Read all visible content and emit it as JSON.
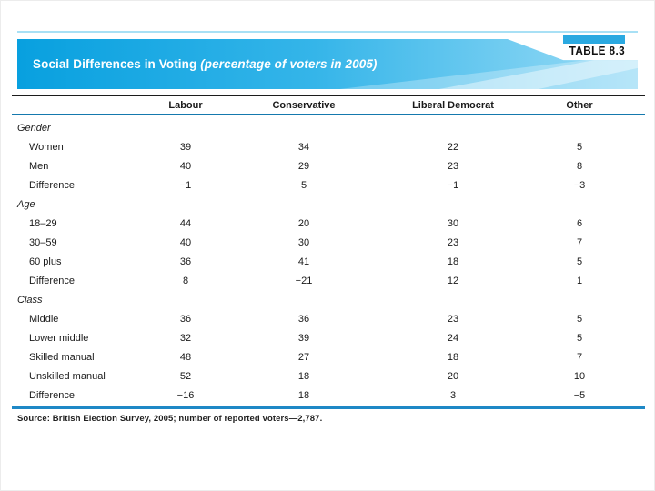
{
  "banner": {
    "title": "Social Differences in Voting",
    "subtitle": "(percentage of voters in 2005)",
    "tag": "TABLE 8.3"
  },
  "table": {
    "columns": [
      "Labour",
      "Conservative",
      "Liberal Democrat",
      "Other"
    ],
    "sections": [
      {
        "label": "Gender",
        "rows": [
          {
            "label": "Women",
            "values": [
              "39",
              "34",
              "22",
              "5"
            ]
          },
          {
            "label": "Men",
            "values": [
              "40",
              "29",
              "23",
              "8"
            ]
          },
          {
            "label": "Difference",
            "values": [
              "−1",
              "5",
              "−1",
              "−3"
            ]
          }
        ]
      },
      {
        "label": "Age",
        "rows": [
          {
            "label": "18–29",
            "values": [
              "44",
              "20",
              "30",
              "6"
            ]
          },
          {
            "label": "30–59",
            "values": [
              "40",
              "30",
              "23",
              "7"
            ]
          },
          {
            "label": "60 plus",
            "values": [
              "36",
              "41",
              "18",
              "5"
            ]
          },
          {
            "label": "Difference",
            "values": [
              "8",
              "−21",
              "12",
              "1"
            ]
          }
        ]
      },
      {
        "label": "Class",
        "rows": [
          {
            "label": "Middle",
            "values": [
              "36",
              "36",
              "23",
              "5"
            ]
          },
          {
            "label": "Lower middle",
            "values": [
              "32",
              "39",
              "24",
              "5"
            ]
          },
          {
            "label": "Skilled manual",
            "values": [
              "48",
              "27",
              "18",
              "7"
            ]
          },
          {
            "label": "Unskilled manual",
            "values": [
              "52",
              "18",
              "20",
              "10"
            ]
          },
          {
            "label": "Difference",
            "values": [
              "−16",
              "18",
              "3",
              "−5"
            ]
          }
        ]
      }
    ]
  },
  "source": "Source: British Election Survey, 2005; number of reported voters—2,787.",
  "colors": {
    "banner_blue_left": "#08a0df",
    "banner_blue_right": "#9bdcf6",
    "tag_blue": "#2aa9e1",
    "header_rule_blue": "#1579ae",
    "bottom_rule_blue": "#1e88c6",
    "top_rule_black": "#1c1c1c",
    "text": "#1a1a1a"
  }
}
